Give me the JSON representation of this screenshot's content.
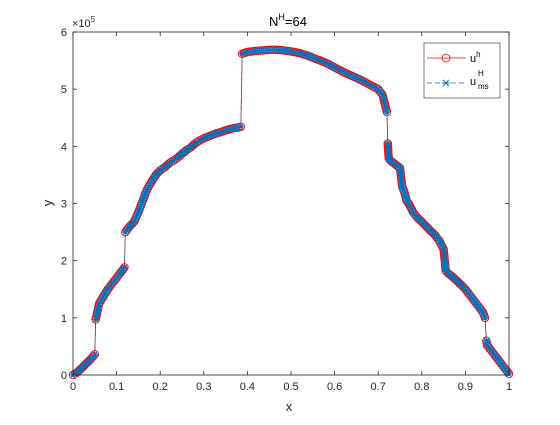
{
  "chart_data": {
    "type": "line",
    "title": {
      "main": "N",
      "sup": "H",
      "rest": "=64"
    },
    "xlabel": "x",
    "ylabel": "y",
    "xlim": [
      0,
      1
    ],
    "ylim": [
      0,
      600000
    ],
    "y_exponent_label": {
      "base": "×10",
      "exp": "5"
    },
    "x_ticks": [
      0,
      0.1,
      0.2,
      0.3,
      0.4,
      0.5,
      0.6,
      0.7,
      0.8,
      0.9,
      1
    ],
    "x_tick_labels": [
      "0",
      "0.1",
      "0.2",
      "0.3",
      "0.4",
      "0.5",
      "0.6",
      "0.7",
      "0.8",
      "0.9",
      "1"
    ],
    "y_ticks": [
      0,
      100000,
      200000,
      300000,
      400000,
      500000,
      600000
    ],
    "y_tick_labels": [
      "0",
      "1",
      "2",
      "3",
      "4",
      "5",
      "6"
    ],
    "grid": false,
    "legend_position": "top-right",
    "series": [
      {
        "name": {
          "main": "u",
          "sup": "h",
          "sub": ""
        },
        "color": "#ff0000",
        "marker": "circle",
        "line": "solid"
      },
      {
        "name": {
          "main": "u",
          "sup": "H",
          "sub": "ms"
        },
        "color": "#0072bd",
        "marker": "asterisk",
        "line": "dashed"
      }
    ],
    "curve": {
      "x": [
        0,
        0.01,
        0.02,
        0.03,
        0.04,
        0.05,
        0.052,
        0.06,
        0.07,
        0.08,
        0.09,
        0.1,
        0.11,
        0.118,
        0.12,
        0.13,
        0.14,
        0.15,
        0.16,
        0.17,
        0.18,
        0.19,
        0.2,
        0.21,
        0.22,
        0.23,
        0.24,
        0.25,
        0.26,
        0.27,
        0.28,
        0.29,
        0.3,
        0.31,
        0.32,
        0.33,
        0.34,
        0.35,
        0.36,
        0.37,
        0.38,
        0.385,
        0.388,
        0.4,
        0.42,
        0.44,
        0.46,
        0.48,
        0.5,
        0.52,
        0.54,
        0.56,
        0.58,
        0.6,
        0.62,
        0.64,
        0.66,
        0.68,
        0.7,
        0.71,
        0.715,
        0.72,
        0.722,
        0.724,
        0.728,
        0.74,
        0.75,
        0.755,
        0.76,
        0.765,
        0.77,
        0.78,
        0.79,
        0.8,
        0.81,
        0.82,
        0.83,
        0.84,
        0.85,
        0.855,
        0.86,
        0.87,
        0.88,
        0.89,
        0.9,
        0.91,
        0.92,
        0.93,
        0.94,
        0.945,
        0.948,
        0.95,
        0.96,
        0.97,
        0.98,
        0.99,
        1.0
      ],
      "y": [
        0,
        5000,
        12000,
        20000,
        27000,
        36000,
        97000,
        125000,
        138000,
        150000,
        160000,
        170000,
        180000,
        188000,
        250000,
        260000,
        268000,
        285000,
        305000,
        325000,
        338000,
        350000,
        358000,
        363000,
        370000,
        375000,
        380000,
        387000,
        393000,
        398000,
        405000,
        410000,
        414000,
        417000,
        420000,
        423000,
        425000,
        428000,
        430000,
        432000,
        433000,
        434000,
        562000,
        565000,
        567000,
        568000,
        569000,
        568000,
        566000,
        563000,
        558000,
        552000,
        546000,
        538000,
        530000,
        523000,
        516000,
        508000,
        500000,
        490000,
        475000,
        460000,
        405000,
        380000,
        375000,
        368000,
        362000,
        330000,
        320000,
        305000,
        300000,
        285000,
        275000,
        268000,
        260000,
        252000,
        245000,
        235000,
        220000,
        182000,
        178000,
        172000,
        165000,
        158000,
        150000,
        140000,
        130000,
        120000,
        110000,
        100000,
        60000,
        52000,
        42000,
        32000,
        22000,
        12000,
        2000
      ]
    }
  }
}
